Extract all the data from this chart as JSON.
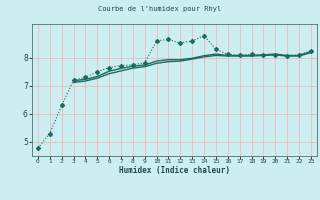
{
  "title": "Courbe de l'humidex pour Rhyl",
  "xlabel": "Humidex (Indice chaleur)",
  "ylabel": "",
  "bg_color": "#cceef0",
  "grid_color_v": "#f0b0b0",
  "grid_color_h": "#f0b0b0",
  "line_color": "#1a6b60",
  "axis_color": "#557070",
  "xlim": [
    -0.5,
    23.5
  ],
  "ylim": [
    4.5,
    9.2
  ],
  "yticks": [
    5,
    6,
    7,
    8
  ],
  "xticks": [
    0,
    1,
    2,
    3,
    4,
    5,
    6,
    7,
    8,
    9,
    10,
    11,
    12,
    13,
    14,
    15,
    16,
    17,
    18,
    19,
    20,
    21,
    22,
    23
  ],
  "series": [
    {
      "x": [
        0,
        1,
        2,
        3,
        4,
        5,
        6,
        7,
        8,
        9,
        10,
        11,
        12,
        13,
        14,
        15,
        16,
        17,
        18,
        19,
        20,
        21,
        22,
        23
      ],
      "y": [
        4.78,
        5.3,
        6.3,
        7.2,
        7.3,
        7.5,
        7.65,
        7.72,
        7.75,
        7.82,
        8.6,
        8.65,
        8.52,
        8.6,
        8.78,
        8.3,
        8.12,
        8.08,
        8.12,
        8.1,
        8.1,
        8.05,
        8.1,
        8.25
      ],
      "style": "dotted",
      "marker": "D",
      "markersize": 2.0,
      "linewidth": 0.8
    },
    {
      "x": [
        3,
        4,
        5,
        6,
        7,
        8,
        9,
        10,
        11,
        12,
        13,
        14,
        15,
        16,
        17,
        18,
        19,
        20,
        21,
        22,
        23
      ],
      "y": [
        7.18,
        7.23,
        7.33,
        7.52,
        7.62,
        7.7,
        7.74,
        7.88,
        7.93,
        7.93,
        7.98,
        8.07,
        8.13,
        8.08,
        8.08,
        8.08,
        8.1,
        8.13,
        8.08,
        8.08,
        8.22
      ],
      "style": "solid",
      "marker": null,
      "markersize": 0,
      "linewidth": 1.0
    },
    {
      "x": [
        3,
        4,
        5,
        6,
        7,
        8,
        9,
        10,
        11,
        12,
        13,
        14,
        15,
        16,
        17,
        18,
        19,
        20,
        21,
        22,
        23
      ],
      "y": [
        7.12,
        7.17,
        7.27,
        7.43,
        7.53,
        7.63,
        7.68,
        7.8,
        7.86,
        7.88,
        7.95,
        8.03,
        8.08,
        8.06,
        8.06,
        8.06,
        8.08,
        8.1,
        8.06,
        8.06,
        8.18
      ],
      "style": "solid",
      "marker": null,
      "markersize": 0,
      "linewidth": 1.0
    }
  ]
}
